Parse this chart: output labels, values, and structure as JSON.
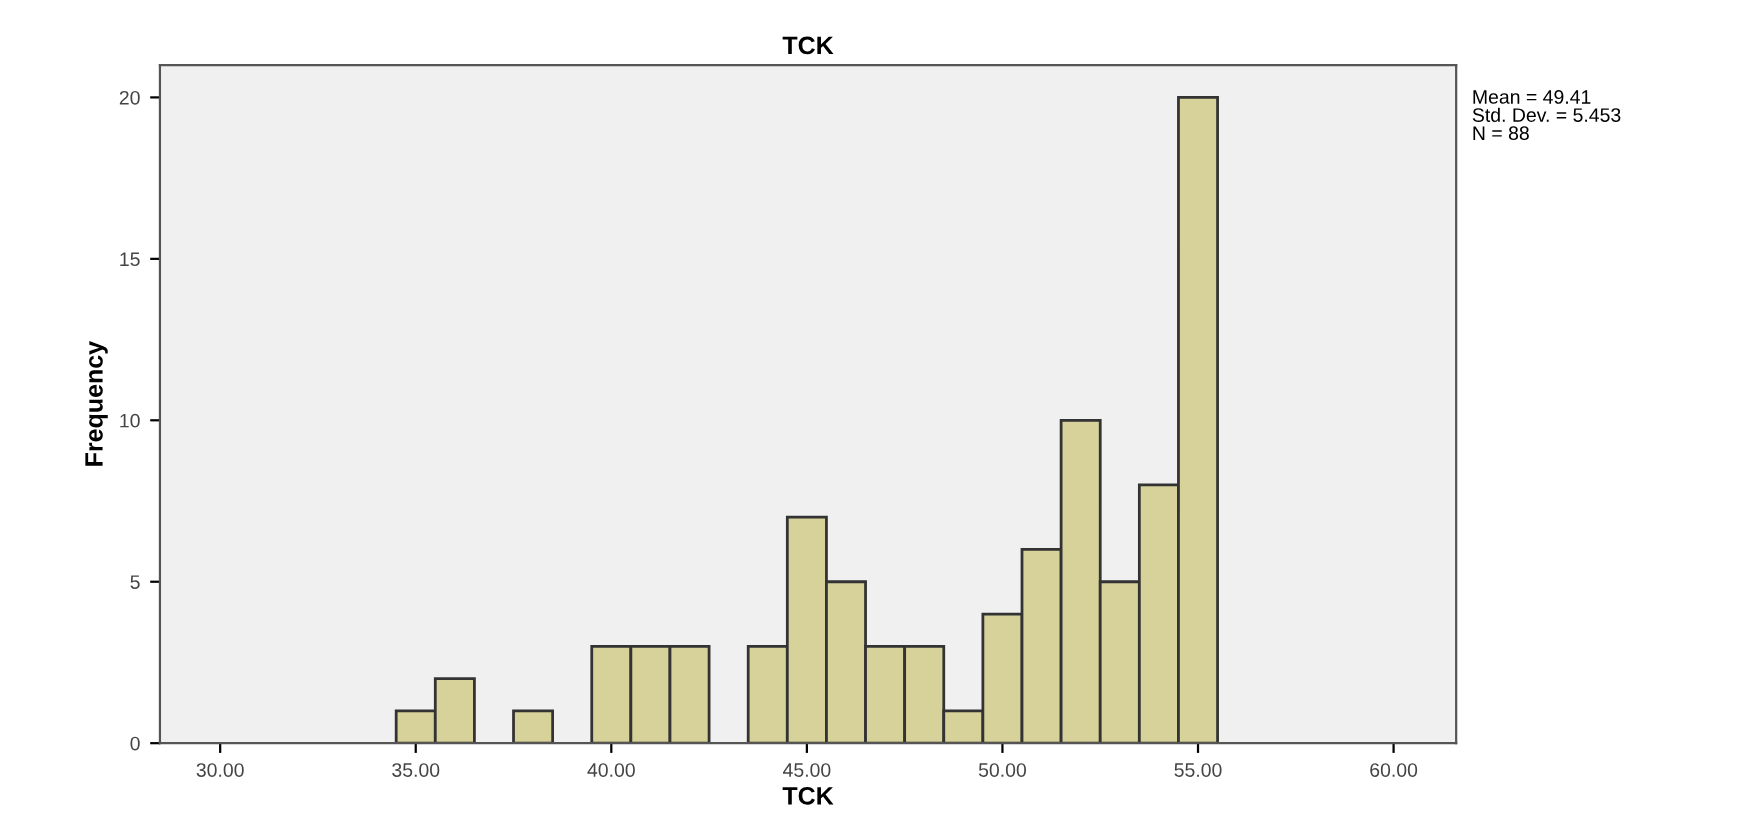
{
  "chart_data": {
    "type": "histogram",
    "title": "TCK",
    "xlabel": "TCK",
    "ylabel": "Frequency",
    "bins": [
      34.5,
      35.5,
      36.5,
      37.5,
      38.5,
      39.5,
      40.5,
      41.5,
      42.5,
      43.5,
      44.5,
      45.5,
      46.5,
      47.5,
      48.5,
      49.5,
      50.5,
      51.5,
      52.5,
      53.5,
      54.5,
      55.5
    ],
    "values": [
      1,
      2,
      0,
      1,
      0,
      3,
      3,
      3,
      0,
      3,
      7,
      5,
      3,
      3,
      1,
      4,
      6,
      10,
      5,
      8,
      20
    ],
    "color": "#d6d29a",
    "xlim": [
      28.46,
      61.6
    ],
    "ylim": [
      0,
      21
    ],
    "xticks": [
      {
        "value": 30,
        "label": "30.00"
      },
      {
        "value": 35,
        "label": "35.00"
      },
      {
        "value": 40,
        "label": "40.00"
      },
      {
        "value": 45,
        "label": "45.00"
      },
      {
        "value": 50,
        "label": "50.00"
      },
      {
        "value": 55,
        "label": "55.00"
      },
      {
        "value": 60,
        "label": "60.00"
      }
    ],
    "yticks": [
      0,
      5,
      10,
      15,
      20
    ],
    "grid": false,
    "legend": false,
    "annotations": [
      "Mean = 49.41",
      "Std. Dev. = 5.453",
      "N = 88"
    ]
  }
}
